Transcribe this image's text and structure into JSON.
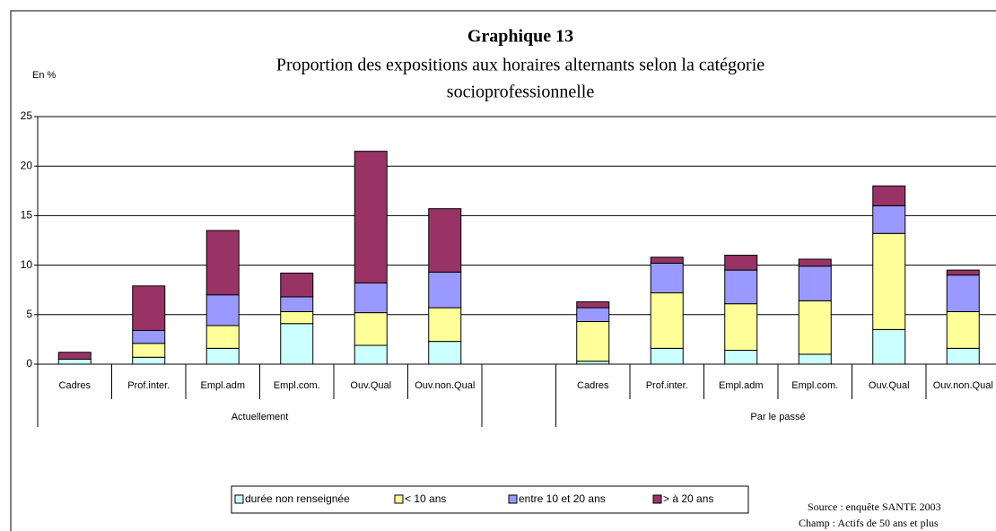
{
  "chart_data": {
    "type": "stacked_bar",
    "title": "Graphique 13",
    "subtitle": [
      "Proportion des expositions aux horaires alternants selon la catégorie",
      "socioprofessionnelle"
    ],
    "y_label": "En %",
    "categories": [
      "Cadres",
      "Prof.inter.",
      "Empl.adm",
      "Empl.com.",
      "Ouv.Qual",
      "Ouv.non.Qual",
      null,
      "Cadres",
      "Prof.inter.",
      "Empl.adm",
      "Empl.com.",
      "Ouv.Qual",
      "Ouv.non.Qual"
    ],
    "group_labels": [
      "Actuellement",
      "Par le passé"
    ],
    "series": [
      {
        "name": "durée non renseignée",
        "color": "#ccffff",
        "values": [
          0.5,
          0.7,
          1.6,
          4.1,
          1.9,
          2.3,
          null,
          0.3,
          1.6,
          1.4,
          1.0,
          3.5,
          1.6
        ]
      },
      {
        "name": "< 10 ans",
        "color": "#ffff99",
        "values": [
          0,
          1.4,
          2.3,
          1.2,
          3.3,
          3.4,
          null,
          4.0,
          5.6,
          4.7,
          5.4,
          9.7,
          3.7
        ]
      },
      {
        "name": "entre 10 et 20 ans",
        "color": "#9999ff",
        "values": [
          0,
          1.3,
          3.1,
          1.5,
          3.0,
          3.6,
          null,
          1.4,
          3.0,
          3.4,
          3.5,
          2.8,
          3.7
        ]
      },
      {
        "name": "> à 20 ans",
        "color": "#993366",
        "values": [
          0.7,
          4.5,
          6.5,
          2.4,
          13.3,
          6.4,
          null,
          0.6,
          0.6,
          1.5,
          0.7,
          2.0,
          0.5
        ]
      }
    ],
    "ylim": [
      0,
      25
    ],
    "yticks": [
      0,
      5,
      10,
      15,
      20,
      25
    ],
    "grid": true,
    "notes": [
      "Source : enquête SANTE 2003",
      "Champ : Actifs de 50 ans et plus"
    ]
  }
}
